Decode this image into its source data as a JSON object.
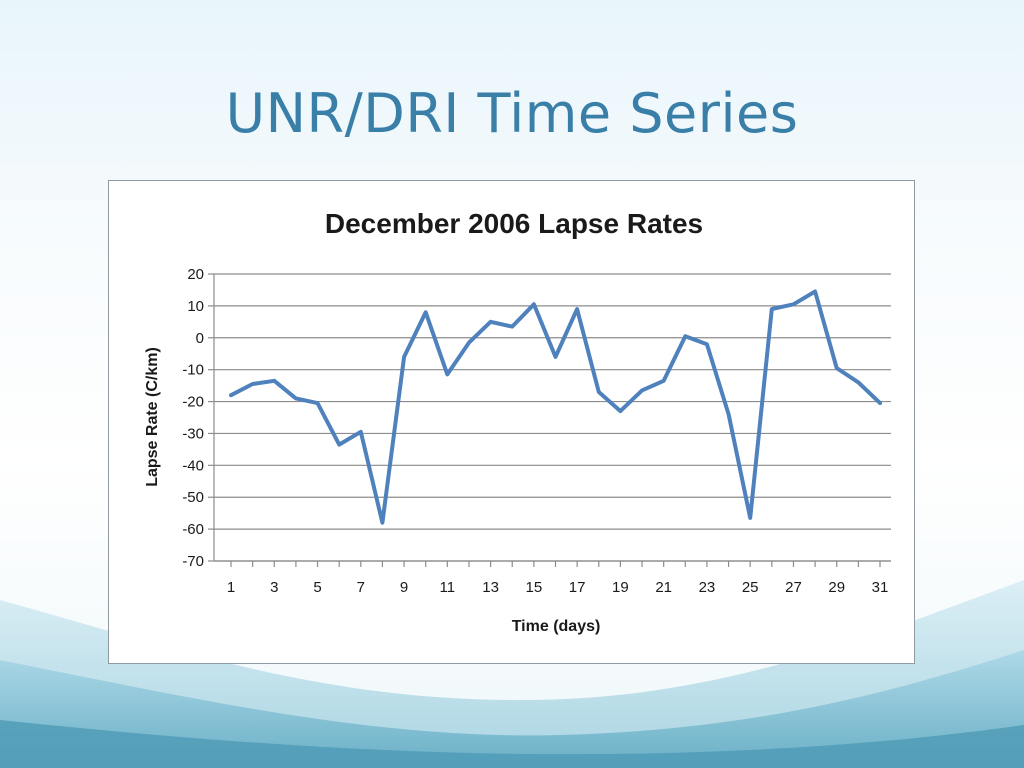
{
  "slide": {
    "title": "UNR/DRI Time Series"
  },
  "chart_data": {
    "type": "line",
    "title": "December 2006 Lapse Rates",
    "xlabel": "Time (days)",
    "ylabel": "Lapse Rate  (C/km)",
    "xlim": [
      1,
      31
    ],
    "ylim": [
      -70,
      20
    ],
    "x_ticks": [
      1,
      3,
      5,
      7,
      9,
      11,
      13,
      15,
      17,
      19,
      21,
      23,
      25,
      27,
      29,
      31
    ],
    "y_ticks": [
      20,
      10,
      0,
      -10,
      -20,
      -30,
      -40,
      -50,
      -60,
      -70
    ],
    "grid": true,
    "legend": false,
    "line_color": "#4f81bd",
    "x": [
      1,
      2,
      3,
      4,
      5,
      6,
      7,
      8,
      9,
      10,
      11,
      12,
      13,
      14,
      15,
      16,
      17,
      18,
      19,
      20,
      21,
      22,
      23,
      24,
      25,
      26,
      27,
      28,
      29,
      30,
      31
    ],
    "values": [
      -18,
      -14.5,
      -13.5,
      -19,
      -20.5,
      -33.5,
      -29.5,
      -58,
      -6,
      8,
      -11.5,
      -1.5,
      5,
      3.5,
      10.5,
      -6,
      9,
      -17,
      -23,
      -16.5,
      -13.5,
      0.5,
      -2,
      -24,
      -56.5,
      9,
      10.5,
      14.5,
      -9.5,
      -14,
      -20.5
    ]
  }
}
